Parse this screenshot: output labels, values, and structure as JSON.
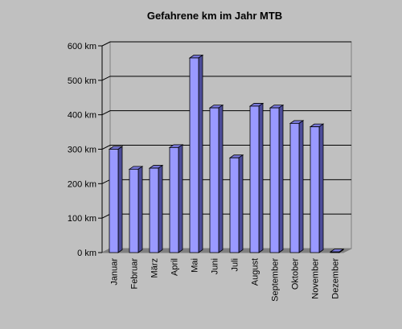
{
  "chart_data": {
    "type": "bar",
    "title": "Gefahrene km im Jahr MTB",
    "categories": [
      "Januar",
      "Februar",
      "März",
      "April",
      "Mai",
      "Juni",
      "Juli",
      "August",
      "September",
      "Oktober",
      "November",
      "Dezember"
    ],
    "values": [
      300,
      242,
      245,
      305,
      565,
      420,
      275,
      425,
      420,
      375,
      365,
      2
    ],
    "ylim": [
      0,
      600
    ],
    "yticks": [
      0,
      100,
      200,
      300,
      400,
      500,
      600
    ],
    "ytick_labels": [
      "0 km",
      "100 km",
      "200 km",
      "300 km",
      "400 km",
      "500 km",
      "600 km"
    ],
    "grid": true,
    "legend": false,
    "colors": {
      "background": "#c0c0c0",
      "bar_front": "#9999ff",
      "bar_side": "#4c4c9a",
      "bar_top": "#7777d8",
      "floor": "#808080",
      "wall_stroke": "#808080",
      "gridline": "#000000"
    }
  }
}
